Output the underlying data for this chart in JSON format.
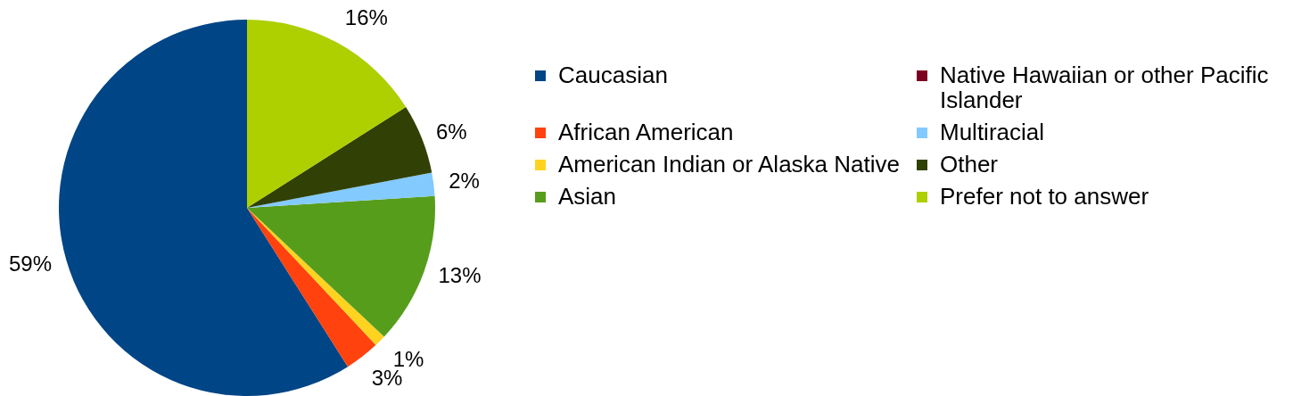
{
  "chart_data": {
    "type": "pie",
    "categories": [
      "Caucasian",
      "African American",
      "American Indian or Alaska Native",
      "Asian",
      "Native Hawaiian or other Pacific Islander",
      "Multiracial",
      "Other",
      "Prefer not to answer"
    ],
    "values": [
      59,
      3,
      1,
      13,
      0,
      2,
      6,
      16
    ],
    "colors": [
      "#004586",
      "#ff420e",
      "#ffd320",
      "#579d1c",
      "#7e0021",
      "#83caff",
      "#314004",
      "#aecf00"
    ],
    "value_labels": [
      "59%",
      "3%",
      "1%",
      "13%",
      null,
      "2%",
      "6%",
      "16%"
    ],
    "legend": "right"
  }
}
